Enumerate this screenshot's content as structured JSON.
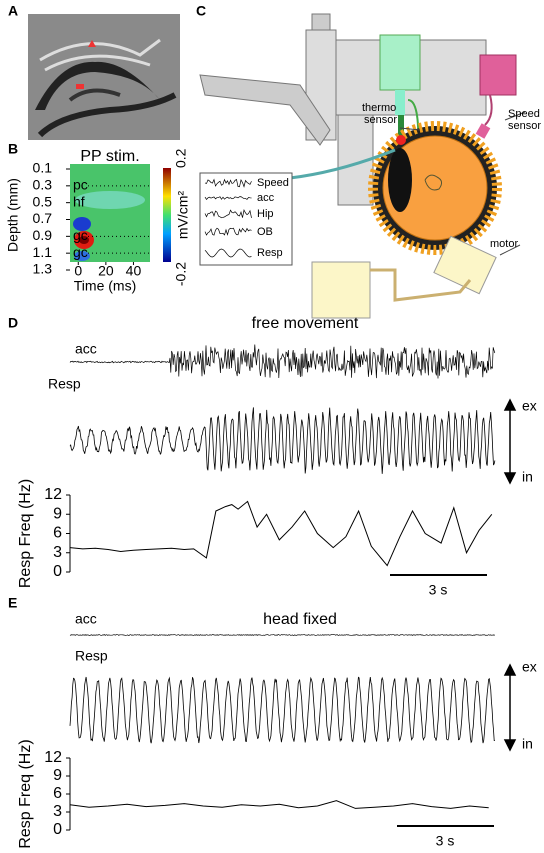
{
  "panels": [
    "A",
    "B",
    "C",
    "D",
    "E"
  ],
  "setup": {
    "thermo_sensor": [
      "thermo",
      "sensor"
    ],
    "speed_sensor": [
      "Speed",
      "sensor"
    ],
    "motor": "motor",
    "inset_traces": [
      "Speed",
      "acc",
      "Hip",
      "OB",
      "Resp"
    ]
  },
  "chart_data": [
    {
      "type": "heatmap",
      "title": "PP stim.",
      "xlabel": "Time (ms)",
      "ylabel": "Depth (mm)",
      "xlim": [
        -6,
        52
      ],
      "xticks": [
        0,
        20,
        40
      ],
      "ylim": [
        0.1,
        1.3
      ],
      "yticks": [
        0.1,
        0.3,
        0.5,
        0.7,
        0.9,
        1.1,
        1.3
      ],
      "layers": [
        {
          "name": "pc",
          "depth": 0.3
        },
        {
          "name": "hf",
          "depth": 0.5
        },
        {
          "name": "gc",
          "depth": 0.9
        },
        {
          "name": "gc",
          "depth": 1.1
        }
      ],
      "colorbar": {
        "label": "mV/cm²",
        "ticks": [
          -0.2,
          0.2
        ]
      }
    },
    {
      "type": "line",
      "title": "free movement",
      "traces": [
        "acc",
        "Resp"
      ],
      "annotations": [
        "ex",
        "in"
      ],
      "ylabel": "Resp Freq (Hz)",
      "scalebar": "3 s",
      "color": "#000000",
      "xlim": [
        0,
        13.4
      ],
      "ylim": [
        0,
        12
      ],
      "yticks": [
        0,
        3,
        6,
        9,
        12
      ],
      "x": [
        0,
        0.4,
        0.8,
        1.2,
        1.6,
        2.0,
        2.4,
        2.8,
        3.2,
        3.6,
        3.9,
        4.3,
        4.6,
        4.9,
        5.1,
        5.3,
        5.6,
        5.9,
        6.2,
        6.6,
        7.0,
        7.4,
        7.8,
        8.3,
        8.7,
        9.1,
        9.5,
        10.0,
        10.4,
        10.8,
        11.2,
        11.7,
        12.1,
        12.5,
        12.9,
        13.3
      ],
      "values": [
        3.8,
        3.6,
        3.7,
        3.5,
        3.2,
        3.4,
        3.5,
        3.6,
        3.7,
        3.5,
        3.6,
        2.2,
        9.5,
        10.2,
        10.5,
        9.8,
        11,
        7,
        9,
        5,
        7,
        9.5,
        6,
        3.8,
        5.5,
        9.5,
        4,
        1,
        5.5,
        9.5,
        6,
        4.5,
        10,
        3,
        6.5,
        9
      ]
    },
    {
      "type": "line",
      "title": "head fixed",
      "traces": [
        "acc",
        "Resp"
      ],
      "annotations": [
        "ex",
        "in"
      ],
      "ylabel": "Resp Freq (Hz)",
      "scalebar": "3 s",
      "color": "#000000",
      "xlim": [
        0,
        13.4
      ],
      "ylim": [
        0,
        12
      ],
      "yticks": [
        0,
        3,
        6,
        9,
        12
      ],
      "x": [
        0,
        0.6,
        1.2,
        1.8,
        2.4,
        3.0,
        3.6,
        4.2,
        4.8,
        5.4,
        6.0,
        6.6,
        7.2,
        7.8,
        8.4,
        9.0,
        9.6,
        10.2,
        10.8,
        11.4,
        12.0,
        12.6,
        13.2
      ],
      "values": [
        4.2,
        3.8,
        4.0,
        4.3,
        3.9,
        4.1,
        4.4,
        4.0,
        3.8,
        4.2,
        4.0,
        4.3,
        3.7,
        4.0,
        4.9,
        3.6,
        3.8,
        4.0,
        4.4,
        3.9,
        3.6,
        4.0,
        3.7
      ]
    }
  ]
}
